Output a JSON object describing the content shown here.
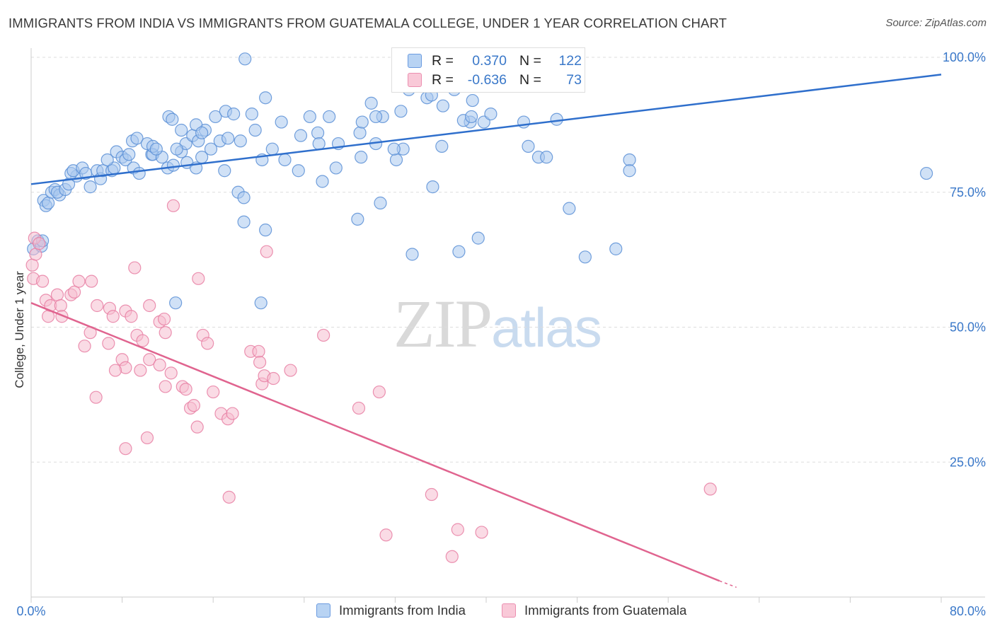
{
  "title": "IMMIGRANTS FROM INDIA VS IMMIGRANTS FROM GUATEMALA COLLEGE, UNDER 1 YEAR CORRELATION CHART",
  "source": "Source: ZipAtlas.com",
  "watermark": {
    "zip": "ZIP",
    "atlas": "atlas"
  },
  "colors": {
    "india_fill": "#a9c8ef",
    "india_stroke": "#5b8fd6",
    "india_line": "#2f6fcc",
    "guatemala_fill": "#f6bed0",
    "guatemala_stroke": "#e77fa3",
    "guatemala_line": "#e0648f",
    "axis_text": "#3a78c9",
    "grid": "#dddddd"
  },
  "legend_top": [
    {
      "r_label": "R =",
      "r_value": "0.370",
      "n_label": "N =",
      "n_value": "122",
      "series": "india"
    },
    {
      "r_label": "R =",
      "r_value": "-0.636",
      "n_label": "N =",
      "n_value": "73",
      "series": "guatemala"
    }
  ],
  "legend_bottom": [
    {
      "label": "Immigrants from India",
      "series": "india"
    },
    {
      "label": "Immigrants from Guatemala",
      "series": "guatemala"
    }
  ],
  "chart_data": {
    "type": "scatter",
    "title": "IMMIGRANTS FROM INDIA VS IMMIGRANTS FROM GUATEMALA COLLEGE, UNDER 1 YEAR CORRELATION CHART",
    "xlabel": "",
    "ylabel": "College, Under 1 year",
    "xlim": [
      0,
      80
    ],
    "ylim": [
      0,
      102
    ],
    "x_ticks_labels": [
      "0.0%",
      "80.0%"
    ],
    "y_ticks": [
      25,
      50,
      75,
      100
    ],
    "y_tick_labels": [
      "25.0%",
      "50.0%",
      "75.0%",
      "100.0%"
    ],
    "grid": true,
    "legend": "top-center",
    "series": [
      {
        "name": "Immigrants from India",
        "r": 0.37,
        "n": 122,
        "trend": {
          "x": [
            0,
            80
          ],
          "y": [
            76.5,
            96.8
          ],
          "dashed_from": null
        },
        "points": [
          [
            0.2,
            64.5
          ],
          [
            0.6,
            66
          ],
          [
            0.9,
            65
          ],
          [
            1,
            66
          ],
          [
            1.1,
            73.5
          ],
          [
            1.3,
            72.5
          ],
          [
            1.5,
            73
          ],
          [
            1.8,
            75
          ],
          [
            2.1,
            75.5
          ],
          [
            2.5,
            74.5
          ],
          [
            2.3,
            75
          ],
          [
            3,
            75.5
          ],
          [
            3.3,
            76.5
          ],
          [
            4,
            78
          ],
          [
            3.5,
            78.5
          ],
          [
            3.7,
            79
          ],
          [
            4.5,
            79.5
          ],
          [
            4.8,
            78.5
          ],
          [
            5.2,
            76
          ],
          [
            5.8,
            79
          ],
          [
            6.1,
            77.5
          ],
          [
            6.3,
            79
          ],
          [
            7.1,
            79
          ],
          [
            7.3,
            79.5
          ],
          [
            6.7,
            81
          ],
          [
            7.5,
            82.5
          ],
          [
            8,
            81.5
          ],
          [
            8.3,
            81
          ],
          [
            8.6,
            82
          ],
          [
            9,
            79.5
          ],
          [
            9.5,
            78.5
          ],
          [
            10.6,
            82
          ],
          [
            10.7,
            82
          ],
          [
            11.5,
            81.5
          ],
          [
            12,
            79.5
          ],
          [
            12.5,
            80
          ],
          [
            13.2,
            82.5
          ],
          [
            13.6,
            84
          ],
          [
            14.2,
            85.5
          ],
          [
            14.7,
            84.5
          ],
          [
            15.3,
            86.5
          ],
          [
            15.8,
            83
          ],
          [
            16.6,
            84.5
          ],
          [
            17.3,
            85
          ],
          [
            18.4,
            84.5
          ],
          [
            8.9,
            84.5
          ],
          [
            9.3,
            85
          ],
          [
            10.2,
            84
          ],
          [
            10.7,
            83.5
          ],
          [
            11,
            83
          ],
          [
            12.1,
            89
          ],
          [
            12.4,
            88.5
          ],
          [
            13.2,
            86.5
          ],
          [
            14.5,
            87.5
          ],
          [
            15,
            86
          ],
          [
            16.2,
            89
          ],
          [
            17.1,
            90
          ],
          [
            17.8,
            89.5
          ],
          [
            19.4,
            89.5
          ],
          [
            20.6,
            92.5
          ],
          [
            18.8,
            99.7
          ],
          [
            19.7,
            86.5
          ],
          [
            22,
            88
          ],
          [
            23.7,
            85.5
          ],
          [
            24.5,
            89
          ],
          [
            25.2,
            86
          ],
          [
            26.2,
            89
          ],
          [
            28.9,
            86
          ],
          [
            29.1,
            88
          ],
          [
            30.9,
            89
          ],
          [
            29.9,
            91.5
          ],
          [
            30.3,
            89
          ],
          [
            32.5,
            90
          ],
          [
            36.2,
            91
          ],
          [
            34.8,
            92.5
          ],
          [
            35.2,
            93
          ],
          [
            38.6,
            88
          ],
          [
            38,
            88.3
          ],
          [
            38.7,
            89
          ],
          [
            38.8,
            92
          ],
          [
            39.8,
            88
          ],
          [
            40.4,
            89.5
          ],
          [
            43.3,
            88
          ],
          [
            46.2,
            88.5
          ],
          [
            37.2,
            94
          ],
          [
            33.2,
            94
          ],
          [
            12.8,
            83
          ],
          [
            13.7,
            80.5
          ],
          [
            14.5,
            79.5
          ],
          [
            15,
            81.5
          ],
          [
            17,
            79
          ],
          [
            18.2,
            75
          ],
          [
            18.7,
            74
          ],
          [
            20.3,
            81
          ],
          [
            21.2,
            83
          ],
          [
            22.3,
            81
          ],
          [
            23.5,
            79
          ],
          [
            25.6,
            77
          ],
          [
            26.8,
            79.5
          ],
          [
            25.3,
            84
          ],
          [
            27,
            84
          ],
          [
            29,
            81.5
          ],
          [
            30.3,
            84
          ],
          [
            32.1,
            81
          ],
          [
            32.7,
            83
          ],
          [
            28.7,
            70
          ],
          [
            30.7,
            73
          ],
          [
            35.3,
            76
          ],
          [
            36.1,
            83.5
          ],
          [
            31.9,
            83
          ],
          [
            43.7,
            83.5
          ],
          [
            44.6,
            81.5
          ],
          [
            45.3,
            81.5
          ],
          [
            52.6,
            81
          ],
          [
            78.7,
            78.5
          ],
          [
            33.5,
            63.5
          ],
          [
            37.6,
            64
          ],
          [
            39.3,
            66.5
          ],
          [
            48.7,
            63
          ],
          [
            47.3,
            72
          ],
          [
            51.4,
            64.5
          ],
          [
            52.6,
            79
          ],
          [
            20.6,
            68
          ],
          [
            18.7,
            69.5
          ],
          [
            20.2,
            54.5
          ],
          [
            12.7,
            54.5
          ]
        ]
      },
      {
        "name": "Immigrants from Guatemala",
        "r": -0.636,
        "n": 73,
        "trend": {
          "x": [
            0,
            60.5
          ],
          "y": [
            54.5,
            3
          ],
          "dashed_to": [
            62,
            1.8
          ]
        },
        "points": [
          [
            0.1,
            61.5
          ],
          [
            0.3,
            66.5
          ],
          [
            0.4,
            63.5
          ],
          [
            0.7,
            65.5
          ],
          [
            0.2,
            59
          ],
          [
            1,
            58.5
          ],
          [
            1.3,
            55
          ],
          [
            1.7,
            54
          ],
          [
            1.5,
            52
          ],
          [
            2.3,
            56
          ],
          [
            2.6,
            54
          ],
          [
            2.7,
            52
          ],
          [
            3.5,
            56
          ],
          [
            3.8,
            56.5
          ],
          [
            4.2,
            58.5
          ],
          [
            5.3,
            58.5
          ],
          [
            5.8,
            54
          ],
          [
            6.9,
            53.5
          ],
          [
            7.2,
            52
          ],
          [
            8.3,
            53
          ],
          [
            8.8,
            52
          ],
          [
            9.3,
            48.5
          ],
          [
            9.8,
            47.5
          ],
          [
            10.4,
            54
          ],
          [
            9.1,
            61
          ],
          [
            11.3,
            51
          ],
          [
            11.7,
            51.5
          ],
          [
            11.8,
            49
          ],
          [
            14.7,
            59
          ],
          [
            4.7,
            46.5
          ],
          [
            5.2,
            49
          ],
          [
            6.8,
            47
          ],
          [
            8,
            44
          ],
          [
            8.3,
            42.5
          ],
          [
            9.6,
            42
          ],
          [
            10.4,
            44
          ],
          [
            11.3,
            43
          ],
          [
            12.3,
            41.5
          ],
          [
            13.3,
            39
          ],
          [
            13.6,
            38.5
          ],
          [
            14,
            35
          ],
          [
            14.3,
            35.5
          ],
          [
            15.1,
            48.5
          ],
          [
            15.5,
            47
          ],
          [
            16,
            38
          ],
          [
            16.7,
            34
          ],
          [
            17.3,
            33
          ],
          [
            17.7,
            34
          ],
          [
            19.3,
            45.5
          ],
          [
            20,
            45.5
          ],
          [
            20.1,
            43.5
          ],
          [
            20.3,
            39.5
          ],
          [
            20.5,
            41
          ],
          [
            21.3,
            40.5
          ],
          [
            22.8,
            42
          ],
          [
            25.7,
            48.5
          ],
          [
            28.8,
            35
          ],
          [
            30.6,
            38
          ],
          [
            5.7,
            37
          ],
          [
            7.4,
            42
          ],
          [
            8.3,
            27.5
          ],
          [
            10.2,
            29.5
          ],
          [
            11.8,
            39
          ],
          [
            14.6,
            31.5
          ],
          [
            17.4,
            18.5
          ],
          [
            20.7,
            64
          ],
          [
            12.5,
            72.5
          ],
          [
            35.2,
            19
          ],
          [
            37.5,
            12.5
          ],
          [
            39.6,
            12
          ],
          [
            31.2,
            11.5
          ],
          [
            37,
            7.5
          ],
          [
            59.7,
            20
          ]
        ]
      }
    ]
  }
}
